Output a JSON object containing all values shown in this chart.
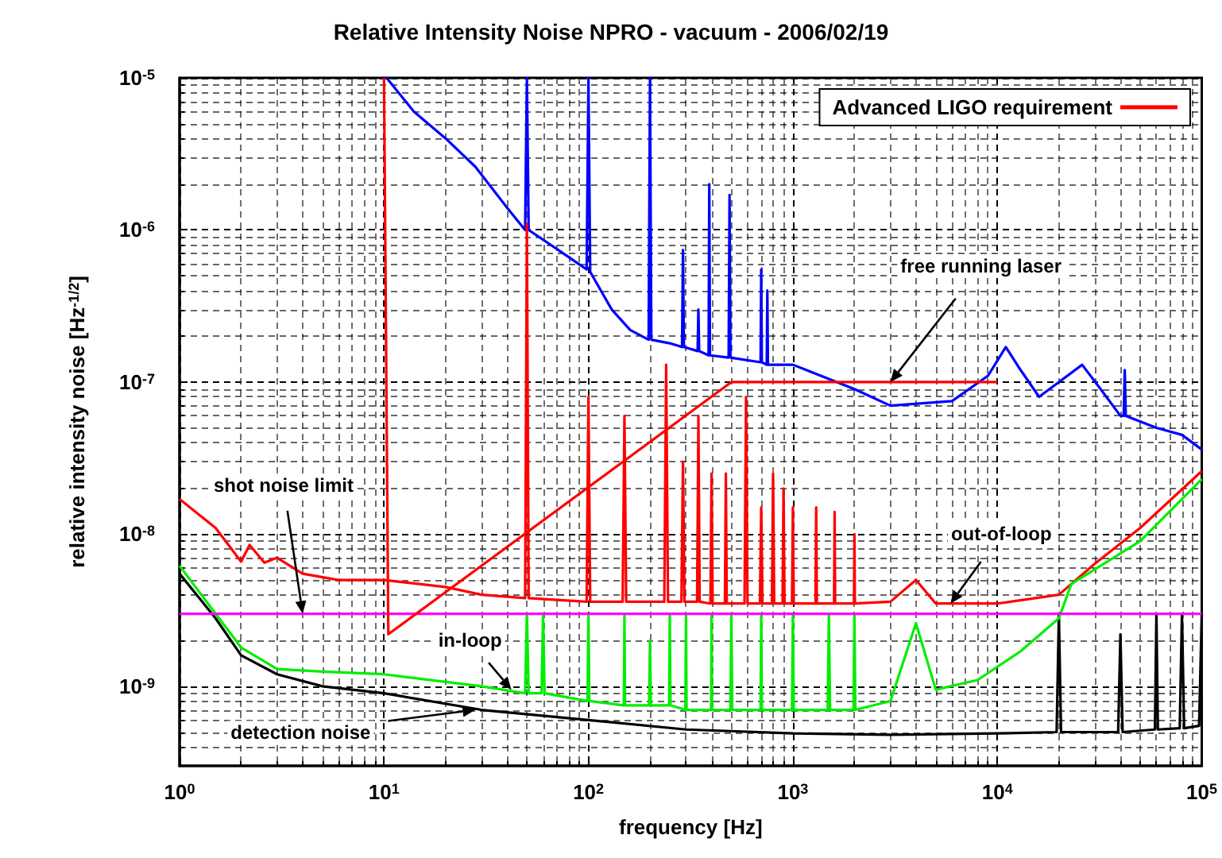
{
  "chart_data": {
    "type": "line",
    "title": "Relative Intensity Noise NPRO - vacuum - 2006/02/19",
    "xlabel": "frequency [Hz]",
    "ylabel": "relative intensity noise [Hz$^{-1/2}$]",
    "log": "xy",
    "grid": true,
    "legend": "top right",
    "marker": "none",
    "xlim": [
      1,
      100000
    ],
    "ylim": [
      3e-10,
      1e-05
    ],
    "xticks": [
      {
        "value": 1,
        "label": "10$^{0}$"
      },
      {
        "value": 10,
        "label": "10$^{1}$"
      },
      {
        "value": 100,
        "label": "10$^{2}$"
      },
      {
        "value": 1000,
        "label": "10$^{3}$"
      },
      {
        "value": 10000,
        "label": "10$^{4}$"
      },
      {
        "value": 100000,
        "label": "10$^{5}$"
      }
    ],
    "yticks": [
      {
        "value": 1e-09,
        "label": "10$^{-9}$"
      },
      {
        "value": 1e-08,
        "label": "10$^{-8}$"
      },
      {
        "value": 1e-07,
        "label": "10$^{-7}$"
      },
      {
        "value": 1e-06,
        "label": "10$^{-6}$"
      },
      {
        "value": 1e-05,
        "label": "10$^{-5}$"
      }
    ],
    "series": [
      {
        "color": "#0000ff",
        "x": [
          10.3,
          14,
          20,
          28,
          40,
          49,
          50,
          51,
          70,
          98,
          100,
          102,
          130,
          160,
          197,
          200,
          203,
          250,
          287,
          290,
          293,
          342,
          345,
          348,
          387,
          390,
          393,
          485,
          490,
          495,
          695,
          700,
          705,
          745,
          750,
          755,
          1000,
          2000,
          3000,
          6000,
          9000,
          11000,
          13000,
          16000,
          20000,
          26000,
          32000,
          40000,
          41500,
          42000,
          42500,
          60000,
          80000,
          100000
        ],
        "values": [
          1e-05,
          6e-06,
          4e-06,
          2.6e-06,
          1.4e-06,
          1e-06,
          1e-05,
          1e-06,
          7.5e-07,
          5.5e-07,
          1e-05,
          5.3e-07,
          3e-07,
          2.2e-07,
          1.9e-07,
          1e-05,
          1.9e-07,
          1.8e-07,
          1.7e-07,
          7.4e-07,
          1.7e-07,
          1.6e-07,
          3e-07,
          1.6e-07,
          1.5e-07,
          2e-06,
          1.5e-07,
          1.45e-07,
          1.7e-06,
          1.45e-07,
          1.35e-07,
          5.5e-07,
          1.35e-07,
          1.3e-07,
          4e-07,
          1.3e-07,
          1.3e-07,
          9e-08,
          7e-08,
          7.5e-08,
          1.1e-07,
          1.7e-07,
          1.2e-07,
          8e-08,
          1e-07,
          1.3e-07,
          9e-08,
          6e-08,
          6e-08,
          1.2e-07,
          6e-08,
          5e-08,
          4.5e-08,
          3.6e-08
        ]
      },
      {
        "color": "#ff0000",
        "x": [
          1,
          1.5,
          2,
          2.2,
          2.6,
          3,
          4,
          6,
          10,
          20,
          30,
          49,
          50,
          51,
          70,
          98,
          100,
          102,
          147,
          150,
          153,
          235,
          240,
          245,
          285,
          290,
          295,
          340,
          345,
          350,
          395,
          400,
          405,
          465,
          470,
          475,
          580,
          590,
          600,
          690,
          700,
          710,
          790,
          800,
          810,
          890,
          900,
          910,
          990,
          1000,
          1010,
          1290,
          1300,
          1310,
          1590,
          1600,
          1610,
          1990,
          2000,
          2010,
          3000,
          4000,
          5000,
          10000,
          20000,
          30000,
          50000,
          100000
        ],
        "values": [
          1.7e-08,
          1.1e-08,
          6.6e-09,
          8.5e-09,
          6.5e-09,
          7e-09,
          5.5e-09,
          5e-09,
          5e-09,
          4.5e-09,
          4e-09,
          3.8e-09,
          1.1e-06,
          3.8e-09,
          3.7e-09,
          3.6e-09,
          8e-08,
          3.6e-09,
          3.6e-09,
          6e-08,
          3.6e-09,
          3.6e-09,
          1.3e-07,
          3.6e-09,
          3.6e-09,
          3e-08,
          3.6e-09,
          3.6e-09,
          6e-08,
          3.6e-09,
          3.5e-09,
          2.5e-08,
          3.5e-09,
          3.5e-09,
          2.5e-08,
          3.5e-09,
          3.5e-09,
          8e-08,
          3.5e-09,
          3.5e-09,
          1.5e-08,
          3.5e-09,
          3.5e-09,
          2.5e-08,
          3.5e-09,
          3.5e-09,
          2e-08,
          3.5e-09,
          3.5e-09,
          1.5e-08,
          3.5e-09,
          3.5e-09,
          1.5e-08,
          3.5e-09,
          3.5e-09,
          1.4e-08,
          3.5e-09,
          3.5e-09,
          1e-08,
          3.5e-09,
          3.6e-09,
          5e-09,
          3.5e-09,
          3.5e-09,
          4e-09,
          6.4e-09,
          1.1e-08,
          2.6e-08
        ]
      },
      {
        "color": "#000000",
        "x": [
          1,
          1.5,
          2,
          3,
          5,
          10,
          30,
          100,
          300,
          1000,
          3000,
          10000,
          19500,
          20000,
          20500,
          39000,
          40000,
          41000,
          59000,
          60000,
          61000,
          78000,
          80000,
          82000,
          97000,
          100000
        ],
        "values": [
          5.5e-09,
          2.8e-09,
          1.6e-09,
          1.2e-09,
          1e-09,
          9e-10,
          7e-10,
          6e-10,
          5.2e-10,
          4.9e-10,
          4.8e-10,
          4.9e-10,
          5e-10,
          3e-09,
          5e-10,
          5e-10,
          2.2e-09,
          5e-10,
          5.2e-10,
          3e-09,
          5.2e-10,
          5.3e-10,
          3e-09,
          5.3e-10,
          5.5e-10,
          3e-09
        ]
      },
      {
        "color": "#00ee00",
        "x": [
          1,
          1.5,
          2,
          3,
          5,
          10,
          30,
          49,
          50,
          51,
          59,
          60,
          61,
          99,
          100,
          101,
          149,
          150,
          151,
          198,
          200,
          202,
          248,
          250,
          252,
          298,
          300,
          302,
          398,
          400,
          402,
          495,
          500,
          505,
          695,
          700,
          705,
          990,
          1000,
          1010,
          1480,
          1500,
          1520,
          1980,
          2000,
          2020,
          3000,
          4000,
          5000,
          8000,
          13000,
          20000,
          23000,
          50000,
          100000
        ],
        "values": [
          6.2e-09,
          3e-09,
          1.8e-09,
          1.3e-09,
          1.25e-09,
          1.2e-09,
          1e-09,
          9e-10,
          3e-09,
          9e-10,
          9e-10,
          3e-09,
          9e-10,
          8e-10,
          3e-09,
          8e-10,
          7.5e-10,
          3e-09,
          7.5e-10,
          7.5e-10,
          2e-09,
          7.5e-10,
          7.5e-10,
          3e-09,
          7.5e-10,
          7e-10,
          3e-09,
          7e-10,
          7e-10,
          3e-09,
          7e-10,
          7e-10,
          3e-09,
          7e-10,
          7e-10,
          3e-09,
          7e-10,
          7e-10,
          3e-09,
          7e-10,
          7e-10,
          3e-09,
          7e-10,
          7e-10,
          3e-09,
          7e-10,
          8e-10,
          2.6e-09,
          9.5e-10,
          1.1e-09,
          1.7e-09,
          2.8e-09,
          4.7e-09,
          9e-09,
          2.3e-08
        ]
      },
      {
        "color": "#ff00ff",
        "x": [
          1,
          100000
        ],
        "values": [
          3e-09,
          3e-09
        ]
      },
      {
        "name": "Advanced LIGO requirement",
        "color": "#ff0000",
        "x": [
          10,
          10.5,
          500,
          10000
        ],
        "values": [
          1e-05,
          2.2e-09,
          1e-07,
          1e-07
        ]
      }
    ],
    "annotations": [
      {
        "text": "free running laser",
        "x": 3000,
        "y": 1e-07
      },
      {
        "text": "shot noise limit",
        "x": 4,
        "y": 3e-09
      },
      {
        "text": "out-of-loop",
        "x": 5900,
        "y": 3.5e-09
      },
      {
        "text": "in-loop",
        "x": 42,
        "y": 9.5e-10
      },
      {
        "text": "detection noise",
        "x": 28,
        "y": 7e-10
      }
    ]
  }
}
